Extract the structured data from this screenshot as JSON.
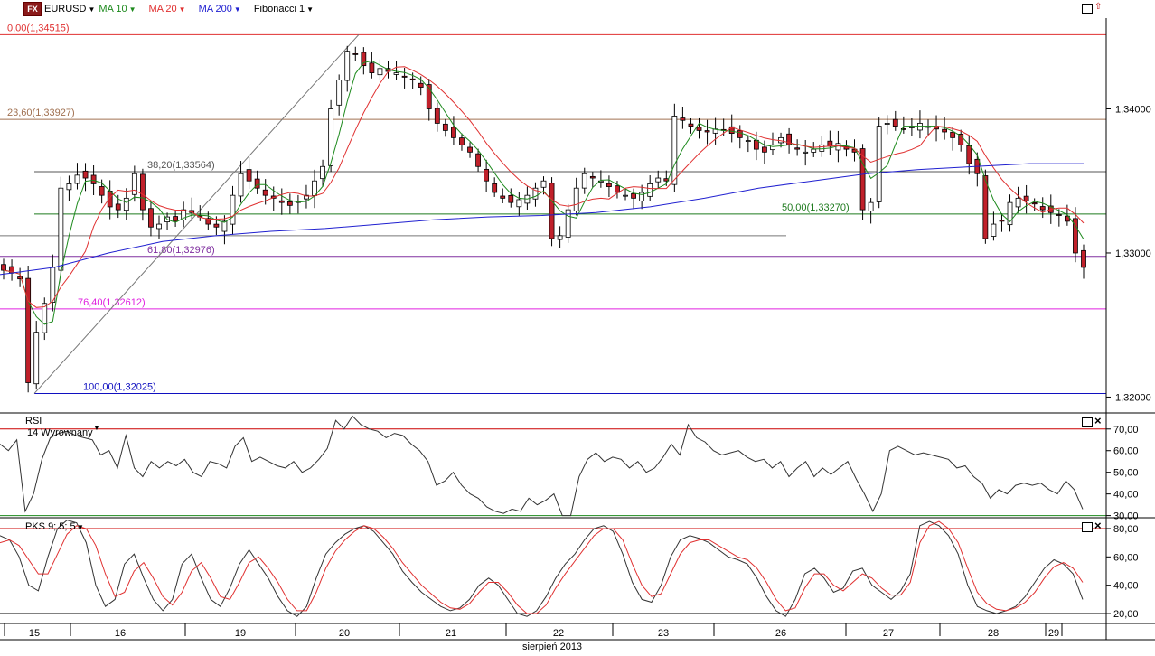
{
  "toolbar": {
    "logo": "FX",
    "symbol": "EURUSD",
    "ma10": "MA 10",
    "ma20": "MA 20",
    "ma200": "MA 200",
    "fibonacci": "Fibonacci 1"
  },
  "colors": {
    "candle_up": "#ffffff",
    "candle_down": "#c0202a",
    "ma10": "#1d8a1d",
    "ma20": "#e03030",
    "ma200": "#2020d0",
    "rsi": "#333333",
    "pks_k": "#333333",
    "pks_d": "#e03030",
    "fib_0": "#e03030",
    "fib_236": "#a07050",
    "fib_382": "#555555",
    "fib_50": "#1d7a1d",
    "fib_618": "#8030a0",
    "fib_764": "#e020e0",
    "fib_100": "#1010c0"
  },
  "rsi_panel": {
    "title": "RSI",
    "subtitle": "14 Wyrownany"
  },
  "pks_panel": {
    "title": "PKS 9; 5; 5"
  },
  "x_axis": {
    "month_label": "sierpień 2013",
    "day_labels": [
      "15",
      "16",
      "19",
      "20",
      "21",
      "22",
      "23",
      "26",
      "27",
      "28",
      "29"
    ]
  },
  "chart_data": [
    {
      "type": "candlestick",
      "symbol": "EURUSD",
      "y_ticks": [
        "1,34000",
        "1,33000",
        "1,32000"
      ],
      "y_tick_values": [
        1.34,
        1.33,
        1.32
      ],
      "ylim": [
        1.3189,
        1.3463
      ],
      "fibonacci_levels": [
        {
          "label": "0,00(1,34515)",
          "value": 1.34515
        },
        {
          "label": "23,60(1,33927)",
          "value": 1.33927
        },
        {
          "label": "38,20(1,33564)",
          "value": 1.33564
        },
        {
          "label": "50,00(1,33270)",
          "value": 1.3327
        },
        {
          "label": "61,80(1,32976)",
          "value": 1.32976
        },
        {
          "label": "76,40(1,32612)",
          "value": 1.32612
        },
        {
          "label": "100,00(1,32025)",
          "value": 1.32025
        }
      ],
      "close_path": [
        1.3288,
        1.3286,
        1.3282,
        1.321,
        1.3245,
        1.3265,
        1.329,
        1.3345,
        1.3348,
        1.3354,
        1.3352,
        1.3348,
        1.334,
        1.3332,
        1.333,
        1.3338,
        1.3355,
        1.333,
        1.3318,
        1.332,
        1.3325,
        1.3322,
        1.333,
        1.3328,
        1.3325,
        1.332,
        1.3318,
        1.3322,
        1.334,
        1.3355,
        1.335,
        1.3345,
        1.334,
        1.3338,
        1.3335,
        1.3333,
        1.3335,
        1.334,
        1.335,
        1.336,
        1.34,
        1.342,
        1.344,
        1.3438,
        1.343,
        1.3425,
        1.3428,
        1.3426,
        1.3425,
        1.3422,
        1.342,
        1.3415,
        1.34,
        1.339,
        1.3385,
        1.338,
        1.3375,
        1.337,
        1.336,
        1.335,
        1.3342,
        1.3338,
        1.3335,
        1.3337,
        1.334,
        1.3345,
        1.335,
        1.331,
        1.3312,
        1.333,
        1.3345,
        1.3355,
        1.3352,
        1.335,
        1.3346,
        1.3342,
        1.334,
        1.3338,
        1.3342,
        1.3348,
        1.3352,
        1.335,
        1.3395,
        1.3392,
        1.3388,
        1.3385,
        1.3384,
        1.3386,
        1.3385,
        1.3383,
        1.338,
        1.3378,
        1.3372,
        1.337,
        1.3375,
        1.338,
        1.3375,
        1.3372,
        1.337,
        1.3372,
        1.3375,
        1.3374,
        1.3376,
        1.3372,
        1.337,
        1.333,
        1.3335,
        1.3388,
        1.339,
        1.3388,
        1.3386,
        1.3388,
        1.339,
        1.3388,
        1.3386,
        1.3384,
        1.338,
        1.3375,
        1.3362,
        1.3355,
        1.331,
        1.332,
        1.3322,
        1.3335,
        1.3338,
        1.3336,
        1.3334,
        1.333,
        1.3328,
        1.3326,
        1.3322,
        1.33,
        1.329
      ],
      "ma200_path": [
        1.3285,
        1.329,
        1.33,
        1.3308,
        1.3312,
        1.3315,
        1.3317,
        1.332,
        1.3323,
        1.3325,
        1.3326,
        1.3328,
        1.3332,
        1.3338,
        1.3345,
        1.335,
        1.3355,
        1.3358,
        1.336,
        1.3362,
        1.3362
      ]
    },
    {
      "type": "line",
      "indicator": "RSI",
      "y_ticks": [
        "70,00",
        "60,00",
        "50,00",
        "40,00",
        "30,00"
      ],
      "y_tick_values": [
        70,
        60,
        50,
        40,
        30
      ],
      "ylim": [
        29,
        77
      ],
      "overbought": 70,
      "oversold": 30,
      "values": [
        63,
        60,
        65,
        32,
        40,
        56,
        66,
        68,
        69,
        67,
        66,
        65,
        58,
        60,
        52,
        67,
        52,
        48,
        55,
        52,
        55,
        53,
        56,
        50,
        48,
        55,
        54,
        52,
        62,
        66,
        55,
        57,
        55,
        53,
        52,
        55,
        50,
        52,
        56,
        61,
        74,
        70,
        76,
        72,
        70,
        69,
        66,
        68,
        67,
        63,
        60,
        55,
        44,
        46,
        50,
        44,
        40,
        38,
        34,
        32,
        31,
        33,
        32,
        38,
        35,
        37,
        40,
        30,
        30,
        48,
        56,
        59,
        55,
        57,
        56,
        52,
        55,
        50,
        52,
        57,
        63,
        58,
        72,
        66,
        64,
        60,
        58,
        59,
        60,
        57,
        55,
        56,
        52,
        55,
        48,
        52,
        55,
        48,
        52,
        49,
        52,
        55,
        47,
        40,
        32,
        40,
        60,
        62,
        60,
        58,
        59,
        58,
        57,
        56,
        52,
        53,
        48,
        45,
        38,
        42,
        40,
        44,
        45,
        44,
        45,
        42,
        40,
        46,
        42,
        33
      ]
    },
    {
      "type": "line",
      "indicator": "PKS 9; 5; 5",
      "y_ticks": [
        "80,00",
        "60,00",
        "40,00",
        "20,00"
      ],
      "y_tick_values": [
        80,
        60,
        40,
        20
      ],
      "ylim": [
        13,
        87
      ],
      "upper_level": 80,
      "lower_level": 20,
      "series": [
        {
          "values": [
            75,
            72,
            60,
            40,
            36,
            60,
            80,
            86,
            84,
            70,
            40,
            25,
            30,
            55,
            62,
            45,
            30,
            22,
            30,
            55,
            62,
            45,
            30,
            25,
            38,
            55,
            65,
            55,
            45,
            32,
            22,
            18,
            25,
            45,
            62,
            70,
            76,
            80,
            82,
            78,
            70,
            62,
            50,
            42,
            35,
            30,
            25,
            22,
            24,
            30,
            40,
            45,
            40,
            30,
            20,
            18,
            22,
            32,
            45,
            55,
            62,
            72,
            80,
            82,
            78,
            62,
            42,
            30,
            28,
            40,
            60,
            72,
            75,
            73,
            70,
            65,
            60,
            58,
            55,
            45,
            32,
            22,
            18,
            30,
            48,
            52,
            45,
            35,
            38,
            50,
            52,
            40,
            35,
            30,
            36,
            48,
            82,
            85,
            82,
            75,
            62,
            40,
            25,
            22,
            20,
            22,
            25,
            32,
            42,
            52,
            58,
            55,
            48,
            30
          ]
        },
        {
          "values": [
            70,
            72,
            68,
            58,
            48,
            48,
            62,
            76,
            82,
            80,
            68,
            48,
            32,
            35,
            50,
            56,
            45,
            32,
            26,
            35,
            50,
            56,
            45,
            32,
            30,
            42,
            56,
            60,
            52,
            42,
            30,
            22,
            22,
            35,
            52,
            64,
            72,
            78,
            82,
            80,
            74,
            66,
            56,
            48,
            40,
            34,
            28,
            24,
            23,
            27,
            35,
            42,
            42,
            35,
            26,
            20,
            20,
            26,
            38,
            48,
            57,
            66,
            75,
            80,
            80,
            72,
            55,
            40,
            32,
            34,
            48,
            62,
            70,
            72,
            72,
            68,
            64,
            60,
            58,
            52,
            42,
            30,
            22,
            24,
            38,
            48,
            48,
            40,
            36,
            42,
            48,
            45,
            38,
            33,
            33,
            42,
            70,
            82,
            85,
            80,
            70,
            52,
            35,
            27,
            23,
            22,
            24,
            28,
            35,
            45,
            53,
            56,
            52,
            42
          ]
        }
      ]
    }
  ]
}
